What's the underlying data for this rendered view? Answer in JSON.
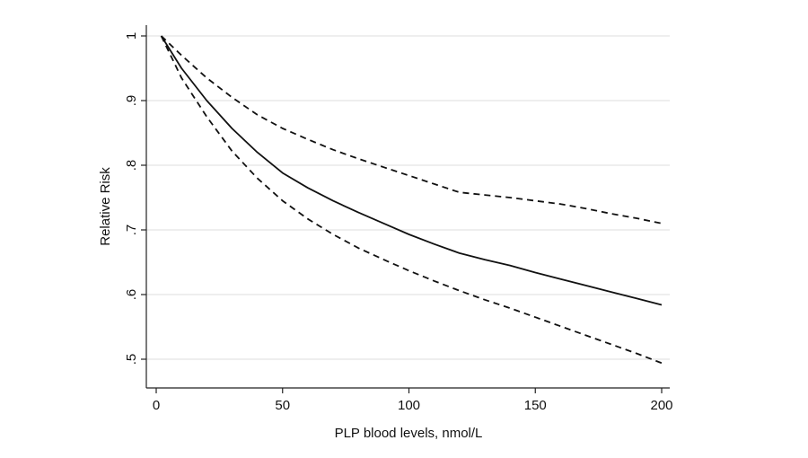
{
  "chart_data": {
    "type": "line",
    "title": "",
    "xlabel": "PLP blood levels, nmol/L",
    "ylabel": "Relative Risk",
    "xlim": [
      0,
      200
    ],
    "ylim": [
      0.45,
      1.0
    ],
    "x_ticks": [
      0,
      50,
      100,
      150,
      200
    ],
    "x_tick_labels": [
      "0",
      "50",
      "100",
      "150",
      "200"
    ],
    "y_ticks": [
      0.5,
      0.6,
      0.7,
      0.8,
      0.9,
      1.0
    ],
    "y_tick_labels": [
      ".5",
      ".6",
      ".7",
      ".8",
      ".9",
      "1"
    ],
    "grid": "horizontal",
    "legend": "none",
    "series": [
      {
        "role": "estimate",
        "style": "solid",
        "x": [
          2,
          10,
          20,
          30,
          40,
          50,
          60,
          70,
          80,
          90,
          100,
          110,
          120,
          130,
          140,
          150,
          160,
          170,
          180,
          190,
          200
        ],
        "y": [
          1.0,
          0.95,
          0.9,
          0.857,
          0.82,
          0.788,
          0.765,
          0.745,
          0.727,
          0.71,
          0.693,
          0.678,
          0.664,
          0.654,
          0.645,
          0.634,
          0.624,
          0.614,
          0.604,
          0.594,
          0.584
        ]
      },
      {
        "role": "upper bound",
        "style": "dashed",
        "x": [
          2,
          10,
          20,
          30,
          40,
          50,
          60,
          70,
          80,
          90,
          100,
          110,
          120,
          130,
          140,
          150,
          160,
          170,
          180,
          190,
          200
        ],
        "y": [
          1.0,
          0.97,
          0.935,
          0.905,
          0.878,
          0.857,
          0.84,
          0.824,
          0.81,
          0.797,
          0.784,
          0.771,
          0.758,
          0.754,
          0.75,
          0.745,
          0.74,
          0.733,
          0.725,
          0.718,
          0.71
        ]
      },
      {
        "role": "lower bound",
        "style": "dashed",
        "x": [
          2,
          10,
          20,
          30,
          40,
          50,
          60,
          70,
          80,
          90,
          100,
          110,
          120,
          130,
          140,
          150,
          160,
          170,
          180,
          190,
          200
        ],
        "y": [
          1.0,
          0.935,
          0.875,
          0.822,
          0.78,
          0.745,
          0.717,
          0.693,
          0.672,
          0.654,
          0.637,
          0.621,
          0.606,
          0.592,
          0.579,
          0.565,
          0.551,
          0.537,
          0.523,
          0.509,
          0.494
        ]
      }
    ]
  }
}
